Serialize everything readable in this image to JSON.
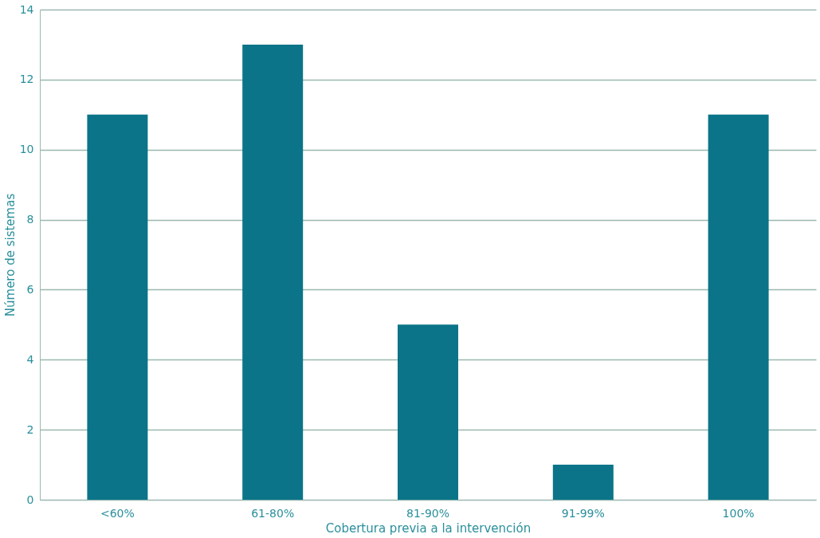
{
  "chart_data": {
    "type": "bar",
    "categories": [
      "<60%",
      "61-80%",
      "81-90%",
      "91-99%",
      "100%"
    ],
    "values": [
      11,
      13,
      5,
      1,
      11
    ],
    "color": "#0b7489",
    "xlabel": "Cobertura previa a la intervención",
    "ylabel": "Número de sistemas",
    "ylim": [
      0,
      14
    ],
    "yticks": [
      0,
      2,
      4,
      6,
      8,
      10,
      12,
      14
    ],
    "grid": "y"
  }
}
